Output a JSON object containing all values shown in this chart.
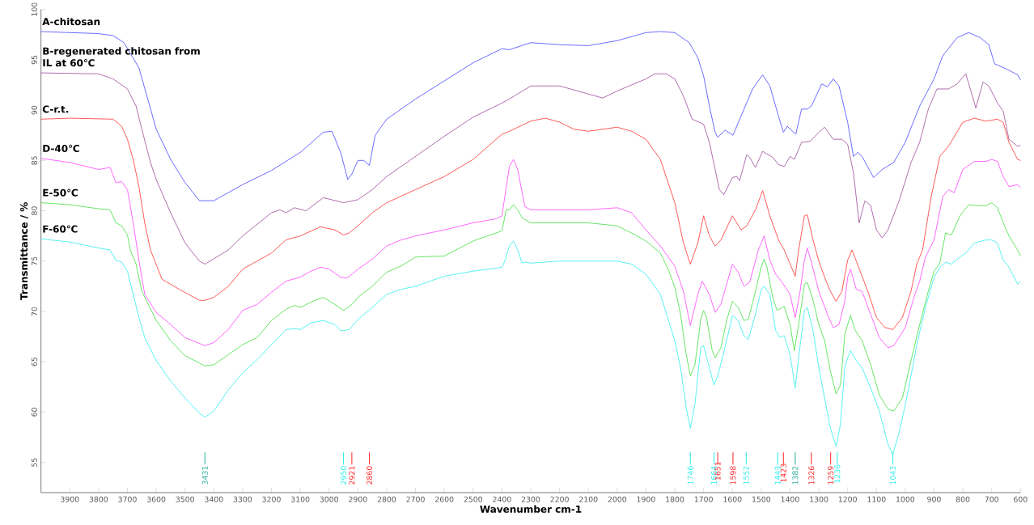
{
  "chart_data": {
    "type": "line",
    "xlabel": "Wavenumber cm-1",
    "ylabel": "Transmittance / %",
    "xlim": [
      4000,
      600
    ],
    "ylim": [
      52,
      100
    ],
    "xticks": [
      3900,
      3800,
      3700,
      3600,
      3500,
      3400,
      3300,
      3200,
      3100,
      3000,
      2900,
      2800,
      2700,
      2600,
      2500,
      2400,
      2300,
      2200,
      2100,
      2000,
      1900,
      1800,
      1700,
      1600,
      1500,
      1400,
      1300,
      1200,
      1100,
      1000,
      900,
      800,
      700,
      600
    ],
    "yticks": [
      55,
      60,
      65,
      70,
      75,
      80,
      85,
      90,
      95,
      100
    ],
    "grid": false,
    "legend": false,
    "line_style": "solid",
    "series": [
      {
        "name": "A-chitosan",
        "color": "#4646ff",
        "x": [
          4000,
          3800,
          3750,
          3712,
          3660,
          3600,
          3550,
          3500,
          3450,
          3400,
          3350,
          3300,
          3200,
          3100,
          3020,
          2990,
          2960,
          2935,
          2920,
          2900,
          2880,
          2860,
          2840,
          2800,
          2700,
          2600,
          2500,
          2400,
          2374,
          2300,
          2200,
          2100,
          2000,
          1900,
          1850,
          1800,
          1750,
          1720,
          1700,
          1680,
          1660,
          1651,
          1625,
          1598,
          1570,
          1530,
          1495,
          1470,
          1440,
          1423,
          1410,
          1380,
          1360,
          1340,
          1326,
          1290,
          1270,
          1250,
          1230,
          1200,
          1180,
          1165,
          1150,
          1110,
          1080,
          1040,
          1000,
          950,
          900,
          870,
          820,
          780,
          740,
          710,
          690,
          650,
          610,
          600
        ],
        "values": [
          97.8,
          97.6,
          97.4,
          96.7,
          94.2,
          88.1,
          85.1,
          82.8,
          81.0,
          81.0,
          81.8,
          82.6,
          84.0,
          85.8,
          87.8,
          87.9,
          85.8,
          83.1,
          83.7,
          85.0,
          85.0,
          84.5,
          87.5,
          89.1,
          91.1,
          92.9,
          94.7,
          96.1,
          96.0,
          96.7,
          96.5,
          96.4,
          96.9,
          97.7,
          97.8,
          97.7,
          96.7,
          95.2,
          93.4,
          90.4,
          87.8,
          87.3,
          88.0,
          87.5,
          89.4,
          92.1,
          93.5,
          92.4,
          89.4,
          87.8,
          88.4,
          87.6,
          90.1,
          90.1,
          90.4,
          92.6,
          92.3,
          93.1,
          92.4,
          88.8,
          85.4,
          85.8,
          85.4,
          83.3,
          84.1,
          84.8,
          86.8,
          90.4,
          93.1,
          95.4,
          97.2,
          97.7,
          97.2,
          96.5,
          94.6,
          94.1,
          93.5,
          93.0
        ]
      },
      {
        "name": "B-regenerated chitosan from IL at 60℃",
        "color": "#9a4a9a",
        "x": [
          4000,
          3800,
          3750,
          3700,
          3670,
          3650,
          3620,
          3600,
          3550,
          3500,
          3450,
          3431,
          3350,
          3300,
          3200,
          3170,
          3150,
          3120,
          3080,
          3020,
          2950,
          2900,
          2850,
          2800,
          2700,
          2600,
          2500,
          2400,
          2374,
          2300,
          2200,
          2100,
          2050,
          2000,
          1900,
          1870,
          1830,
          1800,
          1770,
          1740,
          1700,
          1680,
          1660,
          1645,
          1630,
          1600,
          1585,
          1575,
          1550,
          1540,
          1520,
          1495,
          1460,
          1440,
          1420,
          1400,
          1385,
          1360,
          1330,
          1300,
          1280,
          1250,
          1220,
          1200,
          1180,
          1160,
          1140,
          1120,
          1100,
          1080,
          1060,
          1020,
          980,
          950,
          920,
          890,
          850,
          820,
          790,
          770,
          755,
          730,
          710,
          680,
          660,
          640,
          610,
          600
        ],
        "values": [
          93.7,
          93.6,
          93.1,
          92.1,
          90.4,
          88.1,
          84.8,
          83.1,
          79.8,
          76.8,
          75.0,
          74.7,
          76.1,
          77.5,
          79.8,
          80.1,
          79.8,
          80.3,
          80.0,
          81.3,
          80.8,
          81.1,
          82.1,
          83.4,
          85.4,
          87.4,
          89.3,
          90.7,
          91.1,
          92.4,
          92.4,
          91.6,
          91.2,
          91.9,
          93.1,
          93.6,
          93.6,
          93.1,
          91.4,
          89.1,
          88.6,
          86.8,
          84.1,
          82.1,
          81.6,
          83.3,
          83.4,
          83.0,
          85.6,
          85.3,
          84.3,
          85.9,
          85.3,
          84.6,
          84.4,
          85.4,
          85.1,
          86.8,
          86.9,
          87.8,
          88.3,
          87.1,
          87.1,
          86.6,
          83.8,
          78.8,
          81.0,
          80.5,
          78.1,
          77.3,
          78.1,
          81.1,
          84.8,
          86.8,
          90.1,
          92.1,
          92.1,
          92.6,
          93.6,
          91.7,
          90.2,
          92.8,
          92.4,
          90.7,
          89.9,
          87.1,
          86.4,
          86.5
        ]
      },
      {
        "name": "C-r.t.",
        "color": "#ff3030",
        "x": [
          4000,
          3900,
          3750,
          3720,
          3700,
          3680,
          3660,
          3640,
          3620,
          3580,
          3520,
          3450,
          3431,
          3400,
          3350,
          3300,
          3200,
          3150,
          3100,
          3030,
          2980,
          2950,
          2930,
          2900,
          2850,
          2800,
          2700,
          2600,
          2500,
          2400,
          2374,
          2300,
          2250,
          2200,
          2150,
          2100,
          2000,
          1950,
          1900,
          1850,
          1800,
          1770,
          1746,
          1720,
          1700,
          1680,
          1660,
          1640,
          1600,
          1570,
          1550,
          1520,
          1495,
          1470,
          1440,
          1420,
          1382,
          1370,
          1350,
          1340,
          1320,
          1300,
          1280,
          1260,
          1240,
          1220,
          1200,
          1185,
          1170,
          1130,
          1100,
          1070,
          1043,
          1010,
          980,
          960,
          940,
          910,
          880,
          850,
          800,
          760,
          720,
          680,
          660,
          640,
          610,
          600
        ],
        "values": [
          89.1,
          89.2,
          89.1,
          88.4,
          87.1,
          85.1,
          82.4,
          78.8,
          76.1,
          73.2,
          72.2,
          71.1,
          71.1,
          71.4,
          72.5,
          74.2,
          75.8,
          77.1,
          77.5,
          78.4,
          78.1,
          77.6,
          77.8,
          78.5,
          79.8,
          80.8,
          82.1,
          83.4,
          85.1,
          87.6,
          87.9,
          88.9,
          89.2,
          88.8,
          88.1,
          87.9,
          88.3,
          87.9,
          87.1,
          85.1,
          80.8,
          76.8,
          74.7,
          76.8,
          79.5,
          77.5,
          76.5,
          77.1,
          79.5,
          78.1,
          78.5,
          80.1,
          82.0,
          79.5,
          77.1,
          76.1,
          73.5,
          76.1,
          79.5,
          79.6,
          77.1,
          75.0,
          73.4,
          72.0,
          71.0,
          72.0,
          75.1,
          76.1,
          75.0,
          72.0,
          69.4,
          68.4,
          68.2,
          69.4,
          72.0,
          74.7,
          76.1,
          81.4,
          85.4,
          86.4,
          88.8,
          89.2,
          88.9,
          89.1,
          88.8,
          86.8,
          85.1,
          85.0
        ]
      },
      {
        "name": "D-40℃",
        "color": "#ff40ff",
        "x": [
          4000,
          3900,
          3800,
          3760,
          3740,
          3720,
          3700,
          3680,
          3660,
          3640,
          3600,
          3550,
          3500,
          3431,
          3400,
          3350,
          3300,
          3250,
          3200,
          3150,
          3100,
          3070,
          3030,
          3000,
          2960,
          2940,
          2920,
          2900,
          2850,
          2800,
          2750,
          2700,
          2600,
          2500,
          2420,
          2400,
          2390,
          2374,
          2360,
          2345,
          2330,
          2320,
          2300,
          2200,
          2100,
          2000,
          1950,
          1900,
          1850,
          1800,
          1770,
          1746,
          1720,
          1705,
          1680,
          1660,
          1640,
          1600,
          1580,
          1560,
          1540,
          1510,
          1490,
          1470,
          1450,
          1430,
          1400,
          1382,
          1365,
          1350,
          1340,
          1325,
          1300,
          1270,
          1250,
          1230,
          1210,
          1200,
          1190,
          1170,
          1150,
          1120,
          1090,
          1060,
          1040,
          1000,
          970,
          950,
          930,
          900,
          870,
          850,
          830,
          800,
          760,
          720,
          700,
          680,
          660,
          640,
          610,
          600
        ],
        "values": [
          85.2,
          84.8,
          84.1,
          84.3,
          82.8,
          82.9,
          82.1,
          78.8,
          75.1,
          71.7,
          69.9,
          68.7,
          67.4,
          66.6,
          66.9,
          68.2,
          70.1,
          70.7,
          71.9,
          73.0,
          73.4,
          73.9,
          74.4,
          74.2,
          73.4,
          73.3,
          73.7,
          74.2,
          75.2,
          76.5,
          77.1,
          77.5,
          78.1,
          78.8,
          79.2,
          79.5,
          81.4,
          84.4,
          85.1,
          84.1,
          81.8,
          80.4,
          80.1,
          80.1,
          80.1,
          80.3,
          79.8,
          78.1,
          76.5,
          74.5,
          72.0,
          68.6,
          71.7,
          73.0,
          71.7,
          69.9,
          70.7,
          74.7,
          73.9,
          72.5,
          72.9,
          76.1,
          77.5,
          75.1,
          73.7,
          73.0,
          71.7,
          69.4,
          72.0,
          75.1,
          76.3,
          74.8,
          72.0,
          69.7,
          68.4,
          68.7,
          71.0,
          73.4,
          74.2,
          72.2,
          72.0,
          69.7,
          67.4,
          66.4,
          66.6,
          68.4,
          71.4,
          73.0,
          75.4,
          77.1,
          81.4,
          82.1,
          81.8,
          84.1,
          84.9,
          84.9,
          85.1,
          84.9,
          83.4,
          82.4,
          82.6,
          82.3
        ]
      },
      {
        "name": "E-50℃",
        "color": "#40e040",
        "x": [
          4000,
          3900,
          3800,
          3760,
          3740,
          3720,
          3700,
          3690,
          3670,
          3650,
          3600,
          3550,
          3500,
          3431,
          3400,
          3350,
          3300,
          3250,
          3200,
          3150,
          3120,
          3100,
          3050,
          3020,
          2980,
          2950,
          2920,
          2900,
          2850,
          2800,
          2750,
          2700,
          2600,
          2500,
          2400,
          2385,
          2374,
          2360,
          2345,
          2330,
          2300,
          2200,
          2100,
          2000,
          1950,
          1900,
          1850,
          1820,
          1800,
          1780,
          1760,
          1746,
          1730,
          1710,
          1700,
          1690,
          1670,
          1660,
          1640,
          1620,
          1600,
          1580,
          1560,
          1545,
          1520,
          1500,
          1490,
          1480,
          1460,
          1445,
          1420,
          1400,
          1385,
          1370,
          1350,
          1340,
          1320,
          1300,
          1280,
          1260,
          1240,
          1225,
          1210,
          1200,
          1190,
          1175,
          1150,
          1120,
          1090,
          1060,
          1040,
          1010,
          980,
          950,
          920,
          900,
          880,
          860,
          840,
          810,
          780,
          750,
          720,
          700,
          680,
          660,
          640,
          610,
          600
        ],
        "values": [
          80.8,
          80.6,
          80.2,
          80.1,
          78.8,
          78.5,
          77.6,
          76.1,
          74.7,
          72.0,
          69.1,
          67.1,
          65.6,
          64.6,
          64.7,
          65.7,
          66.7,
          67.4,
          69.1,
          70.2,
          70.6,
          70.4,
          71.1,
          71.4,
          70.7,
          70.1,
          70.7,
          71.4,
          72.5,
          73.9,
          74.5,
          75.4,
          75.5,
          77.0,
          78.0,
          80.1,
          80.1,
          80.6,
          80.1,
          79.3,
          78.8,
          78.8,
          78.8,
          78.5,
          77.8,
          77.0,
          75.8,
          74.0,
          72.4,
          69.7,
          65.7,
          63.6,
          64.7,
          69.2,
          70.1,
          69.4,
          66.1,
          65.4,
          66.4,
          69.1,
          71.0,
          70.4,
          69.1,
          69.2,
          72.0,
          74.4,
          75.2,
          74.4,
          71.4,
          70.1,
          70.5,
          68.7,
          66.1,
          68.7,
          72.7,
          72.9,
          71.1,
          68.7,
          67.1,
          64.1,
          61.8,
          62.7,
          67.7,
          68.7,
          69.6,
          68.2,
          67.1,
          64.7,
          61.7,
          60.3,
          60.1,
          61.4,
          65.1,
          68.7,
          72.0,
          74.0,
          74.8,
          77.8,
          77.6,
          79.5,
          80.6,
          80.5,
          80.5,
          80.8,
          80.3,
          78.8,
          77.5,
          76.1,
          75.5
        ]
      },
      {
        "name": "F-60℃",
        "color": "#30eeee",
        "x": [
          4000,
          3900,
          3800,
          3760,
          3740,
          3730,
          3720,
          3700,
          3680,
          3660,
          3640,
          3600,
          3550,
          3500,
          3450,
          3431,
          3400,
          3350,
          3300,
          3250,
          3200,
          3150,
          3120,
          3100,
          3060,
          3020,
          2980,
          2960,
          2950,
          2930,
          2900,
          2850,
          2800,
          2750,
          2700,
          2600,
          2500,
          2420,
          2400,
          2390,
          2374,
          2360,
          2345,
          2330,
          2320,
          2300,
          2200,
          2100,
          2000,
          1950,
          1900,
          1850,
          1800,
          1780,
          1760,
          1746,
          1730,
          1710,
          1700,
          1680,
          1664,
          1650,
          1620,
          1600,
          1580,
          1560,
          1545,
          1520,
          1500,
          1490,
          1470,
          1450,
          1435,
          1420,
          1400,
          1382,
          1370,
          1350,
          1340,
          1320,
          1300,
          1280,
          1260,
          1240,
          1225,
          1210,
          1200,
          1190,
          1170,
          1150,
          1120,
          1090,
          1060,
          1043,
          1020,
          990,
          960,
          930,
          900,
          880,
          860,
          840,
          810,
          790,
          760,
          720,
          700,
          680,
          660,
          640,
          610,
          600
        ],
        "values": [
          77.2,
          76.9,
          76.3,
          76.1,
          75.1,
          75.0,
          74.9,
          74.0,
          71.7,
          69.4,
          67.4,
          65.1,
          63.1,
          61.4,
          59.9,
          59.5,
          60.1,
          62.2,
          63.9,
          65.2,
          66.7,
          68.2,
          68.3,
          68.2,
          68.9,
          69.1,
          68.7,
          68.1,
          68.1,
          68.2,
          69.2,
          70.4,
          71.7,
          72.2,
          72.5,
          73.5,
          74.0,
          74.3,
          74.4,
          75.0,
          76.5,
          77.0,
          76.1,
          74.8,
          74.9,
          74.8,
          75.0,
          75.0,
          75.0,
          74.7,
          73.7,
          71.7,
          67.1,
          64.4,
          60.4,
          58.4,
          60.8,
          66.4,
          66.6,
          64.4,
          62.7,
          63.7,
          67.1,
          69.6,
          69.1,
          67.6,
          67.2,
          69.7,
          72.2,
          72.5,
          71.7,
          68.1,
          67.4,
          67.6,
          65.7,
          62.4,
          65.4,
          70.1,
          70.4,
          68.1,
          64.4,
          61.4,
          58.4,
          56.6,
          58.8,
          64.4,
          65.4,
          66.1,
          65.1,
          64.4,
          62.4,
          60.1,
          56.8,
          55.8,
          58.1,
          62.1,
          66.7,
          70.4,
          73.4,
          74.4,
          74.9,
          74.7,
          75.4,
          75.8,
          76.8,
          77.1,
          77.1,
          76.8,
          75.1,
          74.4,
          72.7,
          73.0
        ]
      }
    ],
    "ref_lines": [
      {
        "axis": "x",
        "value": 3431,
        "label": "3431",
        "color": "#30b0a0"
      },
      {
        "axis": "x",
        "value": 2950,
        "label": "2950",
        "color": "#30eeee"
      },
      {
        "axis": "x",
        "value": 2921,
        "label": "2921",
        "color": "#ff3030"
      },
      {
        "axis": "x",
        "value": 2860,
        "label": "2860",
        "color": "#ff3030"
      },
      {
        "axis": "x",
        "value": 1746,
        "label": "1746",
        "color": "#30eeee"
      },
      {
        "axis": "x",
        "value": 1664,
        "label": "1664",
        "color": "#30eeee"
      },
      {
        "axis": "x",
        "value": 1651,
        "label": "1651",
        "color": "#ff3030"
      },
      {
        "axis": "x",
        "value": 1598,
        "label": "1598",
        "color": "#ff3030"
      },
      {
        "axis": "x",
        "value": 1552,
        "label": "1552",
        "color": "#30eeee"
      },
      {
        "axis": "x",
        "value": 1443,
        "label": "1443",
        "color": "#30eeee"
      },
      {
        "axis": "x",
        "value": 1423,
        "label": "1423",
        "color": "#ff3030"
      },
      {
        "axis": "x",
        "value": 1382,
        "label": "1382",
        "color": "#30b0a0"
      },
      {
        "axis": "x",
        "value": 1326,
        "label": "1326",
        "color": "#ff3030"
      },
      {
        "axis": "x",
        "value": 1259,
        "label": "1259",
        "color": "#ff3030"
      },
      {
        "axis": "x",
        "value": 1236,
        "label": "1236",
        "color": "#30eeee"
      },
      {
        "axis": "x",
        "value": 1043,
        "label": "1043",
        "color": "#30eeee"
      }
    ]
  }
}
